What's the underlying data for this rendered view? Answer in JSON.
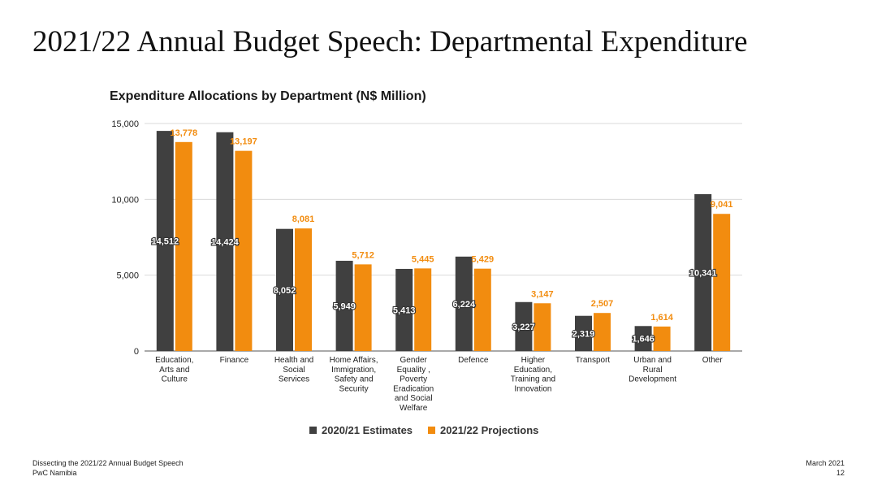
{
  "slide": {
    "title": "2021/22 Annual Budget Speech: Departmental Expenditure"
  },
  "footer": {
    "left_line1": "Dissecting the 2021/22 Annual Budget Speech",
    "left_line2": "PwC Namibia",
    "right_line1": "March 2021",
    "right_line2": "12"
  },
  "colors": {
    "series1": "#404040",
    "series2": "#f28c0f",
    "grid": "#d9d9d9"
  },
  "chart_data": {
    "type": "bar",
    "title": "Expenditure Allocations by Department (N$ Million)",
    "xlabel": "",
    "ylabel": "",
    "ylim": [
      0,
      15000
    ],
    "yticks": [
      0,
      5000,
      10000,
      15000
    ],
    "ytick_labels": [
      "0",
      "5,000",
      "10,000",
      "15,000"
    ],
    "grid": true,
    "legend_position": "bottom",
    "categories": [
      [
        "Education,",
        "Arts and",
        "Culture"
      ],
      [
        "Finance"
      ],
      [
        "Health and",
        "Social",
        "Services"
      ],
      [
        "Home Affairs,",
        "Immigration,",
        "Safety and",
        "Security"
      ],
      [
        "Gender",
        "Equality ,",
        "Poverty",
        "Eradication",
        "and Social",
        "Welfare"
      ],
      [
        "Defence"
      ],
      [
        "Higher",
        "Education,",
        "Training and",
        "Innovation"
      ],
      [
        "Transport"
      ],
      [
        "Urban and",
        "Rural",
        "Development"
      ],
      [
        "Other"
      ]
    ],
    "series": [
      {
        "name": "2020/21 Estimates",
        "values": [
          14512,
          14424,
          8052,
          5949,
          5413,
          6224,
          3227,
          2319,
          1646,
          10341
        ],
        "labels": [
          "14,512",
          "14,424",
          "8,052",
          "5,949",
          "5,413",
          "6,224",
          "3,227",
          "2,319",
          "1,646",
          "10,341"
        ]
      },
      {
        "name": "2021/22 Projections",
        "values": [
          13778,
          13197,
          8081,
          5712,
          5445,
          5429,
          3147,
          2507,
          1614,
          9041
        ],
        "labels": [
          "13,778",
          "13,197",
          "8,081",
          "5,712",
          "5,445",
          "5,429",
          "3,147",
          "2,507",
          "1,614",
          "9,041"
        ]
      }
    ]
  }
}
